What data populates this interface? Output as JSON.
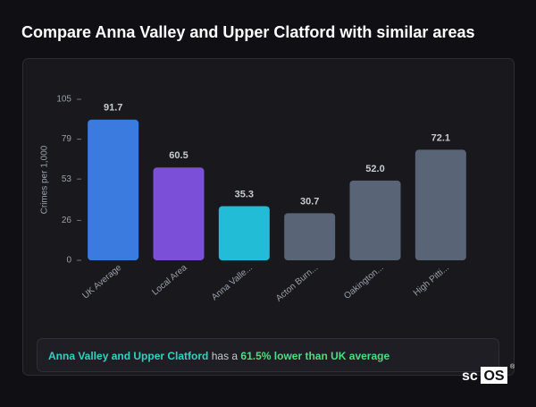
{
  "header": {
    "title": "Compare Anna Valley and Upper Clatford with similar areas"
  },
  "chart_data": {
    "type": "bar",
    "y_label": "Crimes per 1,000",
    "categories": [
      "UK Average",
      "Local Area",
      "Anna Valle...",
      "Acton Burn...",
      "Oakington...",
      "High Pitti..."
    ],
    "values": [
      91.7,
      60.5,
      35.3,
      30.7,
      52.0,
      72.1
    ],
    "value_labels": [
      "91.7",
      "60.5",
      "35.3",
      "30.7",
      "52.0",
      "72.1"
    ],
    "colors": [
      "#3b7be0",
      "#7b4fd8",
      "#22bcd6",
      "#596477",
      "#596477",
      "#596477"
    ],
    "ylim": [
      0,
      105
    ],
    "yticks": [
      0,
      26,
      53,
      79,
      105
    ],
    "grid": false
  },
  "footer": {
    "place": "Anna Valley and Upper Clatford",
    "middle": "has a",
    "highlight": "61.5% lower than UK average"
  },
  "brand": {
    "prefix": "sc",
    "boxed": "OS",
    "mark": "®"
  }
}
